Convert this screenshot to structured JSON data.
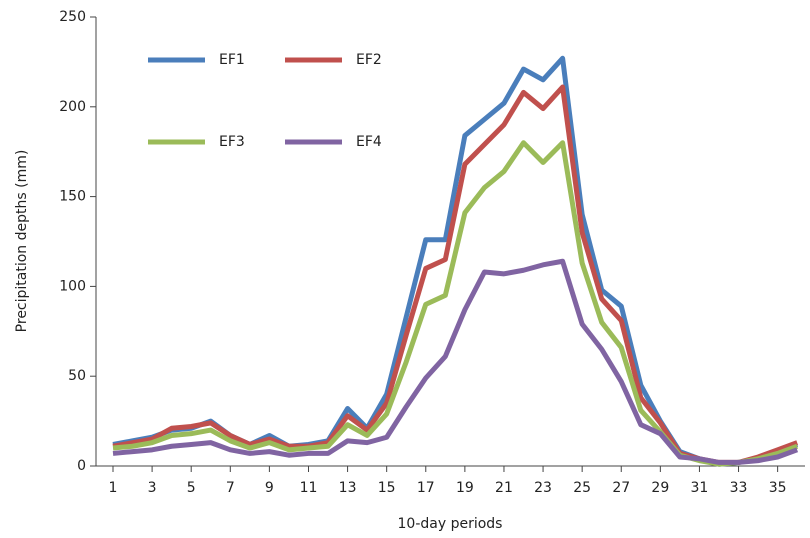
{
  "chart_data": {
    "type": "line",
    "x_label": "10-day periods",
    "y_label": "Precipitation depths (mm)",
    "x": [
      1,
      2,
      3,
      4,
      5,
      6,
      7,
      8,
      9,
      10,
      11,
      12,
      13,
      14,
      15,
      16,
      17,
      18,
      19,
      20,
      21,
      22,
      23,
      24,
      25,
      26,
      27,
      28,
      29,
      30,
      31,
      32,
      33,
      34,
      35,
      36
    ],
    "series": [
      {
        "name": "EF1",
        "color": "#4a7ebb",
        "values": [
          12,
          14,
          16,
          20,
          21,
          25,
          17,
          12,
          17,
          11,
          12,
          14,
          32,
          21,
          40,
          83,
          126,
          126,
          184,
          193,
          202,
          221,
          215,
          227,
          140,
          98,
          89,
          45,
          25,
          8,
          4,
          1,
          2,
          4,
          8,
          12
        ]
      },
      {
        "name": "EF2",
        "color": "#c0504d",
        "values": [
          11,
          13,
          15,
          21,
          22,
          24,
          17,
          12,
          15,
          11,
          11,
          13,
          28,
          20,
          35,
          73,
          110,
          115,
          168,
          179,
          190,
          208,
          199,
          211,
          130,
          93,
          81,
          38,
          24,
          7,
          4,
          2,
          2,
          5,
          9,
          13
        ]
      },
      {
        "name": "EF3",
        "color": "#9bbb59",
        "values": [
          10,
          11,
          13,
          17,
          18,
          20,
          14,
          10,
          13,
          9,
          10,
          11,
          23,
          17,
          29,
          58,
          90,
          95,
          141,
          155,
          164,
          180,
          169,
          180,
          113,
          80,
          66,
          31,
          19,
          6,
          3,
          1,
          2,
          4,
          7,
          11
        ]
      },
      {
        "name": "EF4",
        "color": "#8064a2",
        "values": [
          7,
          8,
          9,
          11,
          12,
          13,
          9,
          7,
          8,
          6,
          7,
          7,
          14,
          13,
          16,
          33,
          49,
          61,
          87,
          108,
          107,
          109,
          112,
          114,
          79,
          65,
          47,
          23,
          18,
          5,
          4,
          2,
          2,
          3,
          5,
          9
        ]
      }
    ],
    "xlim": [
      0.13,
      36.4
    ],
    "xticks": [
      1,
      3,
      5,
      7,
      9,
      11,
      13,
      15,
      17,
      19,
      21,
      23,
      25,
      27,
      29,
      31,
      33,
      35
    ],
    "ylim": [
      0,
      250
    ],
    "yticks": [
      0,
      50,
      100,
      150,
      200,
      250
    ],
    "legend": "upper left"
  }
}
